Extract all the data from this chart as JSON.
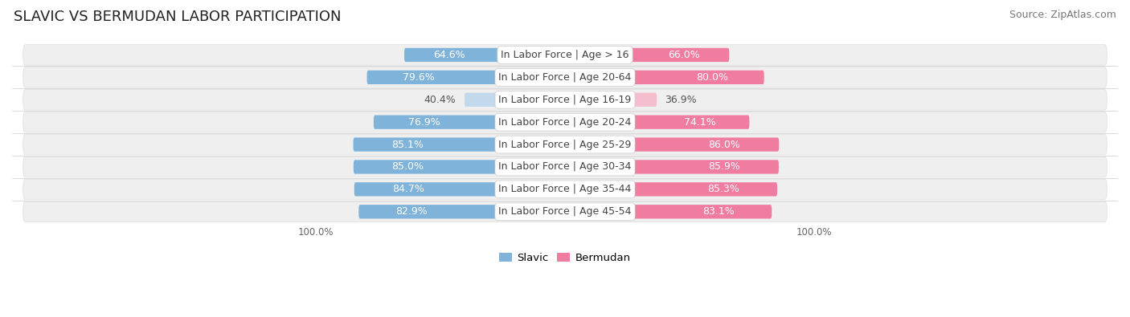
{
  "title": "SLAVIC VS BERMUDAN LABOR PARTICIPATION",
  "source": "Source: ZipAtlas.com",
  "categories": [
    "In Labor Force | Age > 16",
    "In Labor Force | Age 20-64",
    "In Labor Force | Age 16-19",
    "In Labor Force | Age 20-24",
    "In Labor Force | Age 25-29",
    "In Labor Force | Age 30-34",
    "In Labor Force | Age 35-44",
    "In Labor Force | Age 45-54"
  ],
  "slavic_values": [
    64.6,
    79.6,
    40.4,
    76.9,
    85.1,
    85.0,
    84.7,
    82.9
  ],
  "bermudan_values": [
    66.0,
    80.0,
    36.9,
    74.1,
    86.0,
    85.9,
    85.3,
    83.1
  ],
  "slavic_color": "#7fb3d9",
  "slavic_color_light": "#c2d9ed",
  "bermudan_color": "#f07ca0",
  "bermudan_color_light": "#f5bece",
  "row_bg_color": "#efefef",
  "row_bg_alt": "#e8e8e8",
  "max_value": 100.0,
  "bar_height": 0.62,
  "title_fontsize": 13,
  "source_fontsize": 9,
  "label_fontsize": 9,
  "value_fontsize": 9
}
